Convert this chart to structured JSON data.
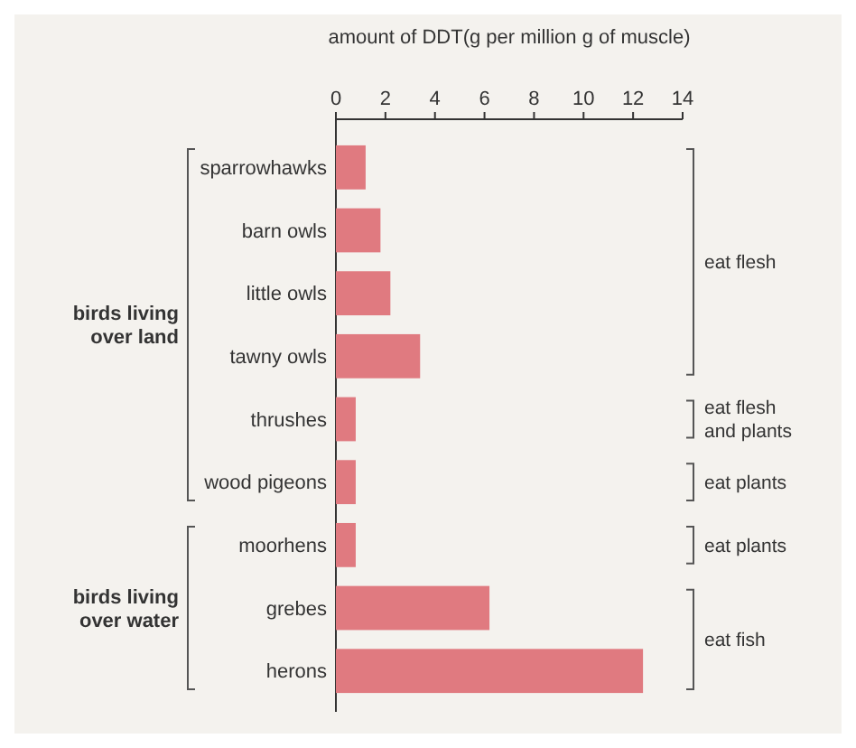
{
  "chart_data": {
    "type": "bar",
    "orientation": "horizontal",
    "xlabel": "amount of DDT(g per million g of muscle)",
    "categories": [
      "sparrowhawks",
      "barn owls",
      "little owls",
      "tawny owls",
      "thrushes",
      "wood pigeons",
      "moorhens",
      "grebes",
      "herons"
    ],
    "values": [
      1.2,
      1.8,
      2.2,
      3.4,
      0.8,
      0.8,
      0.8,
      6.2,
      12.4
    ],
    "color": "#e07a80",
    "xlim": [
      0,
      14
    ],
    "xticks": [
      0,
      2,
      4,
      6,
      8,
      10,
      12,
      14
    ],
    "annotations": [
      "birds living over land",
      "birds living over water",
      "eat flesh",
      "eat flesh and plants",
      "eat plants",
      "eat plants",
      "eat fish"
    ]
  }
}
